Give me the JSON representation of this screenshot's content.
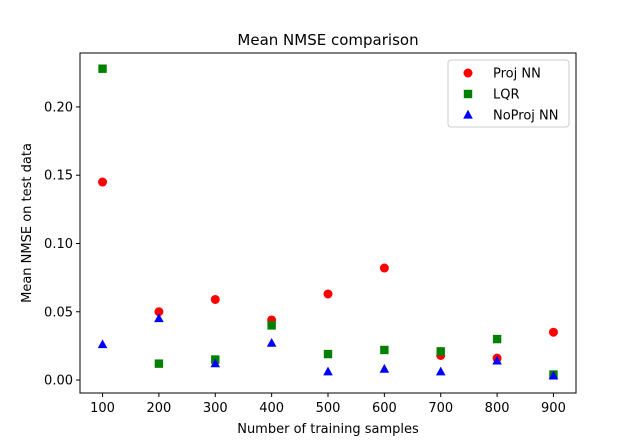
{
  "chart_data": {
    "type": "scatter",
    "title": "Mean NMSE comparison",
    "xlabel": "Number of training samples",
    "ylabel": "Mean NMSE on test data",
    "xlim": [
      60,
      940
    ],
    "ylim": [
      -0.0095,
      0.2395
    ],
    "xticks": [
      100,
      200,
      300,
      400,
      500,
      600,
      700,
      800,
      900
    ],
    "yticks": [
      0.0,
      0.05,
      0.1,
      0.15,
      0.2
    ],
    "ytick_labels": [
      "0.00",
      "0.05",
      "0.10",
      "0.15",
      "0.20"
    ],
    "grid": false,
    "legend_position": "top-right",
    "series": [
      {
        "name": "Proj NN",
        "marker": "circle",
        "color": "#ff0000",
        "x": [
          100,
          200,
          300,
          400,
          500,
          600,
          700,
          800,
          900
        ],
        "y": [
          0.145,
          0.05,
          0.059,
          0.044,
          0.063,
          0.082,
          0.018,
          0.016,
          0.035
        ]
      },
      {
        "name": "LQR",
        "marker": "square",
        "color": "#008000",
        "x": [
          100,
          200,
          300,
          400,
          500,
          600,
          700,
          800,
          900
        ],
        "y": [
          0.228,
          0.012,
          0.015,
          0.04,
          0.019,
          0.022,
          0.021,
          0.03,
          0.004
        ]
      },
      {
        "name": "NoProj NN",
        "marker": "triangle",
        "color": "#0000ff",
        "x": [
          100,
          200,
          300,
          400,
          500,
          600,
          700,
          800,
          900
        ],
        "y": [
          0.026,
          0.045,
          0.012,
          0.027,
          0.006,
          0.008,
          0.006,
          0.014,
          0.003
        ]
      }
    ]
  }
}
